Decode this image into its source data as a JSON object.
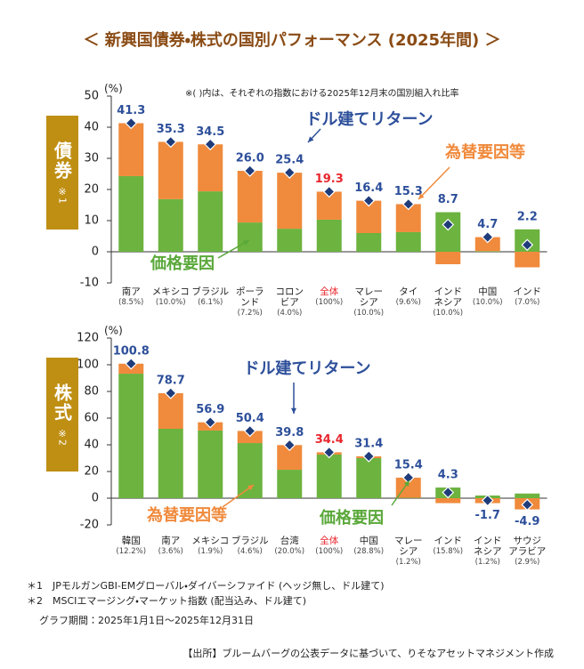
{
  "title": "＜ 新興国債券・株式の国別パフォーマンス (2025年間) ＞",
  "note": "※( )内は、それぞれの指数における2025年12月末の国別組入れ比率",
  "chart_data": [
    {
      "type": "bar",
      "stacked": true,
      "side_label": "債券",
      "side_note": "※1",
      "ylabel": "(%)",
      "highlight": "全体",
      "highlight_color": "#e8262d",
      "categories": [
        "南ア",
        "メキシコ",
        "ブラジル",
        "ポーラ\nンド",
        "コロン\nビア",
        "全体",
        "マレー\nシア",
        "タイ",
        "インド\nネシア",
        "中国",
        "インド"
      ],
      "category_notes": [
        "(8.5%)",
        "(10.0%)",
        "(6.1%)",
        "(7.2%)",
        "(4.0%)",
        "(100%)",
        "(10.0%)",
        "(9.6%)",
        "(10.0%)",
        "(10.0%)",
        "(7.0%)"
      ],
      "series": [
        {
          "name": "価格要因",
          "color": "#6cb33f",
          "values": [
            24.3,
            16.9,
            19.4,
            9.4,
            7.4,
            10.3,
            6.0,
            6.3,
            12.7,
            0.2,
            7.2
          ]
        },
        {
          "name": "為替要因等",
          "color": "#f08a3c",
          "values": [
            17.0,
            18.4,
            15.1,
            16.6,
            18.0,
            9.0,
            10.4,
            9.0,
            -4.0,
            4.5,
            -5.0
          ]
        },
        {
          "name": "ドル建てリターン",
          "type": "marker",
          "color": "#1f3c7a",
          "values": [
            41.3,
            35.3,
            34.5,
            26.0,
            25.4,
            19.3,
            16.4,
            15.3,
            8.7,
            4.7,
            2.2
          ],
          "value_labels": [
            "41.3",
            "35.3",
            "34.5",
            "26.0",
            "25.4",
            "19.3",
            "16.4",
            "15.3",
            "8.7",
            "4.7",
            "2.2"
          ]
        }
      ],
      "ylim": [
        -10,
        50
      ],
      "yticks": [
        -10,
        0,
        10,
        20,
        30,
        40,
        50
      ],
      "grid": false
    },
    {
      "type": "bar",
      "stacked": true,
      "side_label": "株式",
      "side_note": "※2",
      "ylabel": "(%)",
      "highlight": "全体",
      "highlight_color": "#e8262d",
      "categories": [
        "韓国",
        "南ア",
        "メキシコ",
        "ブラジル",
        "台湾",
        "全体",
        "中国",
        "マレー\nシア",
        "インド",
        "インド\nネシア",
        "サウジ\nアラビア"
      ],
      "category_notes": [
        "(12.2%)",
        "(3.6%)",
        "(1.9%)",
        "(4.6%)",
        "(20.0%)",
        "(100%)",
        "(28.8%)",
        "(1.2%)",
        "(15.8%)",
        "(1.2%)",
        "(2.9%)"
      ],
      "series": [
        {
          "name": "価格要因",
          "color": "#6cb33f",
          "values": [
            93.3,
            52.0,
            50.7,
            41.3,
            21.3,
            32.7,
            30.0,
            0.3,
            8.0,
            2.0,
            3.5
          ]
        },
        {
          "name": "為替要因等",
          "color": "#f08a3c",
          "values": [
            7.5,
            26.7,
            6.2,
            9.1,
            18.5,
            1.7,
            1.4,
            15.1,
            -3.7,
            -3.7,
            -8.4
          ]
        },
        {
          "name": "ドル建てリターン",
          "type": "marker",
          "color": "#1f3c7a",
          "values": [
            100.8,
            78.7,
            56.9,
            50.4,
            39.8,
            34.4,
            31.4,
            15.4,
            4.3,
            -1.7,
            -4.9
          ]
        }
      ],
      "ylim": [
        -20,
        120
      ],
      "yticks": [
        -20,
        0,
        20,
        40,
        60,
        80,
        100,
        120
      ],
      "grid": false
    }
  ],
  "footnotes": [
    "＊1　JPモルガンGBI-EMグローバル・ダイバーシファイド (ヘッジ無し、ドル建て)",
    "＊2　MSCIエマージング・マーケット指数 (配当込み、ドル建て)"
  ],
  "period": "グラフ期間：2025年1月1日～2025年12月31日",
  "source": "【出所】ブルームバーグの公表データに基づいて、りそなアセットマネジメント作成"
}
